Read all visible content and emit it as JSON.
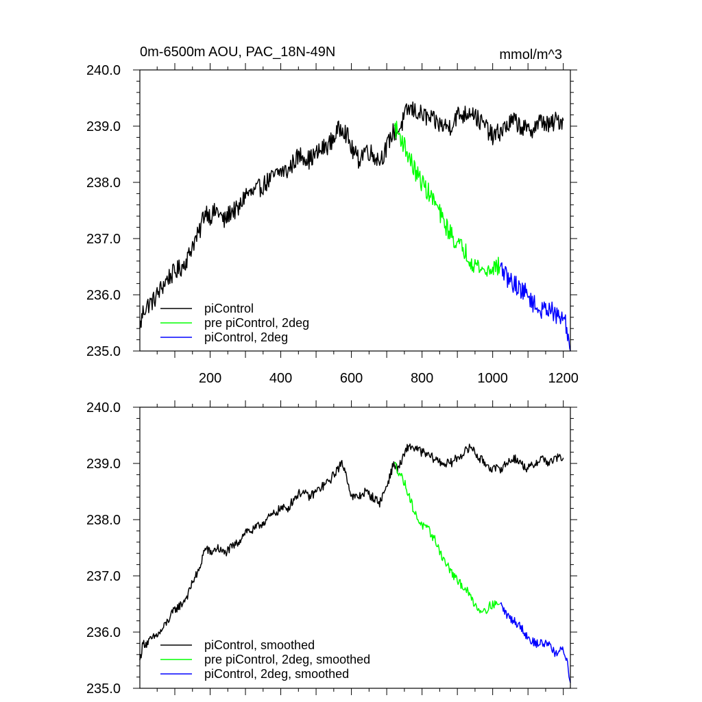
{
  "chart_data": [
    {
      "type": "line",
      "title": "0m-6500m AOU, PAC_18N-49N",
      "units": "mmol/m^3",
      "xlim": [
        1,
        1220
      ],
      "ylim": [
        235.0,
        240.0
      ],
      "x_ticks": [
        200,
        400,
        600,
        800,
        1000,
        1200
      ],
      "x_tick_labels": [
        "200",
        "400",
        "600",
        "800",
        "1000",
        "1200"
      ],
      "y_ticks": [
        235.0,
        236.0,
        237.0,
        238.0,
        239.0,
        240.0
      ],
      "y_tick_labels": [
        "235.0",
        "236.0",
        "237.0",
        "238.0",
        "239.0",
        "240.0"
      ],
      "legend_position": "bottom-left",
      "noise": 0.17,
      "series": [
        {
          "name": "piControl",
          "color": "#000000",
          "x": [
            1,
            10,
            20,
            40,
            60,
            80,
            100,
            120,
            140,
            150,
            170,
            180,
            190,
            200,
            220,
            240,
            260,
            280,
            300,
            320,
            340,
            360,
            380,
            400,
            420,
            440,
            460,
            480,
            500,
            520,
            540,
            560,
            575,
            590,
            600,
            620,
            640,
            660,
            680,
            700,
            710,
            720,
            730,
            740,
            760,
            770,
            800,
            830,
            860,
            880,
            900,
            920,
            940,
            960,
            980,
            1000,
            1020,
            1040,
            1060,
            1080,
            1100,
            1120,
            1140,
            1160,
            1180,
            1200
          ],
          "y": [
            235.4,
            235.7,
            235.8,
            235.9,
            236.1,
            236.3,
            236.4,
            236.5,
            236.7,
            236.9,
            237.1,
            237.4,
            237.5,
            237.4,
            237.5,
            237.3,
            237.5,
            237.5,
            237.8,
            237.8,
            237.9,
            238.0,
            238.1,
            238.2,
            238.2,
            238.4,
            238.5,
            238.4,
            238.5,
            238.6,
            238.7,
            238.9,
            239.0,
            238.8,
            238.6,
            238.4,
            238.6,
            238.5,
            238.4,
            238.6,
            238.8,
            238.9,
            238.9,
            239.0,
            239.3,
            239.3,
            239.2,
            239.1,
            239.0,
            239.0,
            239.2,
            239.2,
            239.3,
            239.1,
            239.0,
            238.8,
            238.9,
            239.0,
            239.1,
            239.0,
            238.9,
            239.0,
            239.1,
            239.0,
            239.1,
            239.1
          ]
        },
        {
          "name": "pre piControl, 2deg",
          "color": "#00ff00",
          "x": [
            722,
            730,
            740,
            760,
            780,
            800,
            820,
            840,
            860,
            880,
            900,
            920,
            940,
            960,
            980,
            1000,
            1020
          ],
          "y": [
            239.0,
            238.9,
            238.8,
            238.5,
            238.2,
            238.0,
            237.8,
            237.6,
            237.3,
            237.1,
            236.9,
            236.8,
            236.6,
            236.5,
            236.4,
            236.5,
            236.5
          ]
        },
        {
          "name": "piControl, 2deg",
          "color": "#0000ff",
          "x": [
            1022,
            1040,
            1060,
            1080,
            1100,
            1120,
            1140,
            1160,
            1180,
            1200,
            1210,
            1220
          ],
          "y": [
            236.5,
            236.3,
            236.2,
            236.1,
            236.0,
            235.8,
            235.7,
            235.8,
            235.6,
            235.6,
            235.4,
            235.0
          ]
        }
      ]
    },
    {
      "type": "line",
      "xlim": [
        1,
        1220
      ],
      "ylim": [
        235.0,
        240.0
      ],
      "y_ticks": [
        235.0,
        236.0,
        237.0,
        238.0,
        239.0,
        240.0
      ],
      "y_tick_labels": [
        "235.0",
        "236.0",
        "237.0",
        "238.0",
        "239.0",
        "240.0"
      ],
      "legend_position": "bottom-left",
      "noise": 0.08,
      "series": [
        {
          "name": "piControl, smoothed",
          "color": "#000000",
          "x": [
            1,
            10,
            20,
            40,
            60,
            80,
            100,
            120,
            140,
            150,
            170,
            180,
            190,
            200,
            220,
            240,
            260,
            280,
            300,
            320,
            340,
            360,
            380,
            400,
            420,
            440,
            460,
            480,
            500,
            520,
            540,
            560,
            575,
            590,
            600,
            620,
            640,
            660,
            680,
            700,
            710,
            720,
            730,
            740,
            760,
            770,
            800,
            830,
            860,
            880,
            900,
            920,
            940,
            960,
            980,
            1000,
            1020,
            1040,
            1060,
            1080,
            1100,
            1120,
            1140,
            1160,
            1180,
            1200
          ],
          "y": [
            235.5,
            235.8,
            235.8,
            235.9,
            236.0,
            236.2,
            236.4,
            236.5,
            236.7,
            236.9,
            237.1,
            237.4,
            237.5,
            237.4,
            237.5,
            237.4,
            237.5,
            237.6,
            237.8,
            237.8,
            237.9,
            238.0,
            238.1,
            238.2,
            238.2,
            238.4,
            238.5,
            238.4,
            238.5,
            238.6,
            238.7,
            238.9,
            239.0,
            238.7,
            238.4,
            238.4,
            238.5,
            238.4,
            238.3,
            238.6,
            238.8,
            239.0,
            238.9,
            239.0,
            239.3,
            239.3,
            239.2,
            239.1,
            239.0,
            239.0,
            239.1,
            239.2,
            239.3,
            239.1,
            239.0,
            238.9,
            238.9,
            239.0,
            239.1,
            239.0,
            238.9,
            239.0,
            239.1,
            239.0,
            239.1,
            239.1
          ]
        },
        {
          "name": "pre piControl, 2deg, smoothed",
          "color": "#00ff00",
          "x": [
            722,
            730,
            740,
            760,
            780,
            800,
            820,
            840,
            860,
            880,
            900,
            920,
            940,
            960,
            980,
            1000,
            1020
          ],
          "y": [
            239.0,
            238.9,
            238.8,
            238.5,
            238.1,
            237.9,
            237.8,
            237.6,
            237.3,
            237.1,
            236.9,
            236.8,
            236.6,
            236.4,
            236.4,
            236.5,
            236.5
          ]
        },
        {
          "name": "piControl, 2deg, smoothed",
          "color": "#0000ff",
          "x": [
            1022,
            1040,
            1060,
            1080,
            1100,
            1120,
            1140,
            1160,
            1180,
            1200,
            1210,
            1220
          ],
          "y": [
            236.5,
            236.3,
            236.2,
            236.1,
            235.9,
            235.8,
            235.8,
            235.8,
            235.6,
            235.7,
            235.5,
            235.1
          ]
        }
      ]
    }
  ]
}
